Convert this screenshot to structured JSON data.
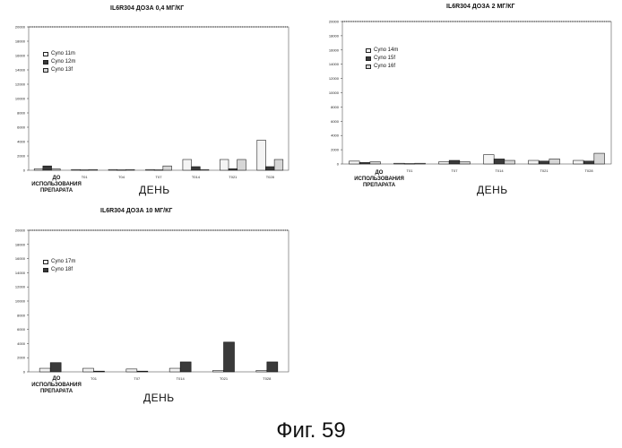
{
  "figure_caption": "Фиг. 59",
  "colors": {
    "m": "#f2f2f2",
    "m2": "#333333",
    "f": "#c8c8c8",
    "f_dark": "#444444"
  },
  "chart_data": [
    {
      "type": "bar",
      "title": "IL6R304  ДОЗА 0,4 МГ/КГ",
      "categories": [
        "ДО\nИСПОЛЬЗОВАНИЯ\nПРЕПАРАТА",
        "T01",
        "T04",
        "T07",
        "T014",
        "T021",
        "T028"
      ],
      "tick_labels": [
        "",
        "T01",
        "T04",
        "T07",
        "T014",
        "T021",
        "T028"
      ],
      "xlabel": "ДЕНЬ",
      "ylim": [
        0,
        20000
      ],
      "yticks": [
        0,
        2000,
        4000,
        6000,
        8000,
        10000,
        12000,
        14000,
        16000,
        18000,
        20000
      ],
      "legend": "top-left",
      "series": [
        {
          "name": "Cyno 11m",
          "values": [
            200,
            100,
            100,
            100,
            1500,
            1500,
            4200
          ],
          "pattern": "light"
        },
        {
          "name": "Cyno 12m",
          "values": [
            600,
            50,
            50,
            50,
            500,
            200,
            500
          ],
          "pattern": "dark"
        },
        {
          "name": "Cyno 13f",
          "values": [
            200,
            100,
            100,
            600,
            100,
            1500,
            1500
          ],
          "pattern": "mid"
        }
      ]
    },
    {
      "type": "bar",
      "title": "IL6R304 ДОЗА 2 МГ/КГ",
      "categories": [
        "ДО\nИСПОЛЬЗОВАНИЯ\nПРЕПАРАТА",
        "T01",
        "T07",
        "T014",
        "T021",
        "T028"
      ],
      "tick_labels": [
        "",
        "T01",
        "T07",
        "T014",
        "T021",
        "T028"
      ],
      "xlabel": "ДЕНЬ",
      "ylim": [
        0,
        20000
      ],
      "yticks": [
        0,
        2000,
        4000,
        6000,
        8000,
        10000,
        12000,
        14000,
        16000,
        18000,
        20000
      ],
      "legend": "top-left",
      "series": [
        {
          "name": "Cyno 14m",
          "values": [
            400,
            100,
            300,
            1300,
            500,
            500
          ],
          "pattern": "light"
        },
        {
          "name": "Cyno 15f",
          "values": [
            200,
            50,
            500,
            700,
            400,
            400
          ],
          "pattern": "dark"
        },
        {
          "name": "Cyno 16f",
          "values": [
            300,
            100,
            300,
            500,
            700,
            1500
          ],
          "pattern": "mid"
        }
      ]
    },
    {
      "type": "bar",
      "title": "IL6R304 ДОЗА 10 МГ/КГ",
      "categories": [
        "ДО\nИСПОЛЬЗОВАНИЯ\nПРЕПАРАТА",
        "T01",
        "T07",
        "T014",
        "T021",
        "T028"
      ],
      "tick_labels": [
        "",
        "T01",
        "T07",
        "T014",
        "T021",
        "T028"
      ],
      "xlabel": "ДЕНЬ",
      "ylim": [
        0,
        20000
      ],
      "yticks": [
        0,
        2000,
        4000,
        6000,
        8000,
        10000,
        12000,
        14000,
        16000,
        18000,
        20000
      ],
      "legend": "top-left",
      "series": [
        {
          "name": "Cyno 17m",
          "values": [
            500,
            500,
            400,
            500,
            200,
            200
          ],
          "pattern": "light"
        },
        {
          "name": "Cyno 18f",
          "values": [
            1300,
            100,
            100,
            1400,
            4200,
            1400
          ],
          "pattern": "dark"
        }
      ]
    }
  ]
}
